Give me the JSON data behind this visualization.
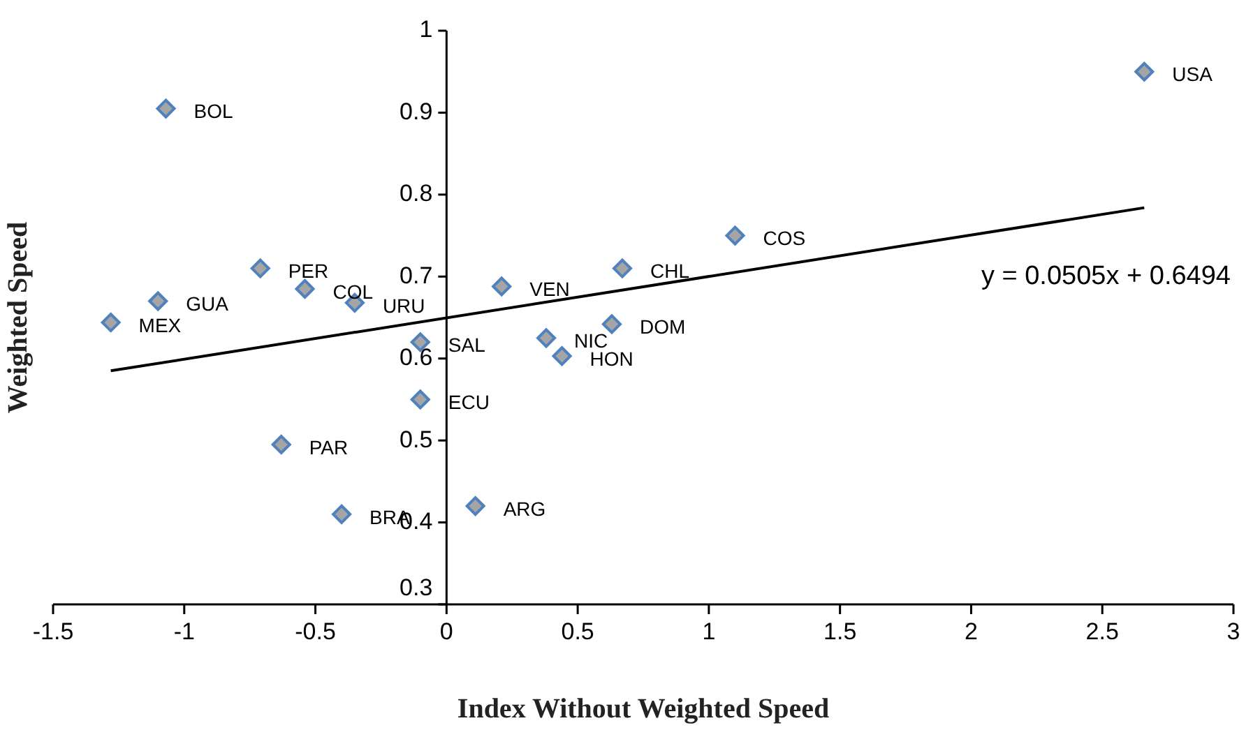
{
  "chart_data": {
    "type": "scatter",
    "xlabel": "Index Without Weighted Speed",
    "ylabel": "Weighted Speed",
    "xlim": [
      -1.5,
      3
    ],
    "xticks": [
      -1.5,
      -1,
      -0.5,
      0,
      0.5,
      1,
      1.5,
      2,
      2.5,
      3
    ],
    "ylim": [
      0.3,
      1
    ],
    "yticks": [
      0.3,
      0.4,
      0.5,
      0.6,
      0.7,
      0.8,
      0.9,
      1
    ],
    "grid": false,
    "legend": false,
    "marker": "diamond",
    "series": [
      {
        "color": "#4f81bd",
        "x": [
          2.66,
          -1.07,
          1.1,
          -0.71,
          0.67,
          -1.1,
          -0.54,
          -0.35,
          0.21,
          -1.28,
          0.63,
          -0.1,
          0.38,
          0.44,
          -0.1,
          -0.63,
          -0.4,
          0.11
        ],
        "values": [
          0.95,
          0.905,
          0.75,
          0.71,
          0.71,
          0.67,
          0.685,
          0.668,
          0.688,
          0.644,
          0.642,
          0.62,
          0.625,
          0.603,
          0.55,
          0.495,
          0.41,
          0.42
        ]
      },
      {
        "type": "line",
        "color": "#000000",
        "marker": "none",
        "x": [
          -1.28,
          2.66
        ],
        "values": [
          0.585,
          0.784
        ]
      }
    ],
    "annotations": [
      {
        "text": "USA",
        "x": 2.66,
        "y": 0.95
      },
      {
        "text": "BOL",
        "x": -1.07,
        "y": 0.905
      },
      {
        "text": "COS",
        "x": 1.1,
        "y": 0.75
      },
      {
        "text": "PER",
        "x": -0.71,
        "y": 0.71
      },
      {
        "text": "CHL",
        "x": 0.67,
        "y": 0.71
      },
      {
        "text": "GUA",
        "x": -1.1,
        "y": 0.67
      },
      {
        "text": "COL",
        "x": -0.54,
        "y": 0.685
      },
      {
        "text": "URU",
        "x": -0.35,
        "y": 0.668
      },
      {
        "text": "VEN",
        "x": 0.21,
        "y": 0.688
      },
      {
        "text": "MEX",
        "x": -1.28,
        "y": 0.644
      },
      {
        "text": "DOM",
        "x": 0.63,
        "y": 0.642
      },
      {
        "text": "SAL",
        "x": -0.1,
        "y": 0.62
      },
      {
        "text": "NIC",
        "x": 0.38,
        "y": 0.625
      },
      {
        "text": "HON",
        "x": 0.44,
        "y": 0.603
      },
      {
        "text": "ECU",
        "x": -0.1,
        "y": 0.55
      },
      {
        "text": "PAR",
        "x": -0.63,
        "y": 0.495
      },
      {
        "text": "BRA",
        "x": -0.4,
        "y": 0.41
      },
      {
        "text": "ARG",
        "x": 0.11,
        "y": 0.42
      },
      "y = 0.0505x + 0.6494"
    ]
  }
}
